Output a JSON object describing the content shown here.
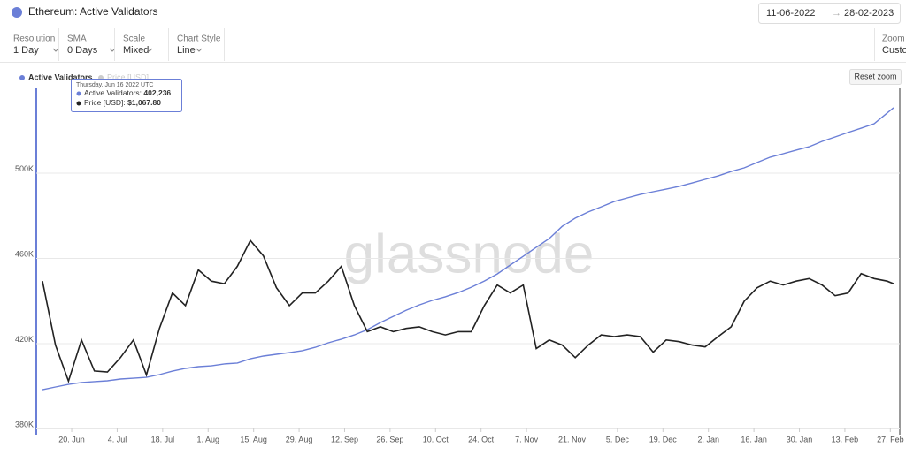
{
  "header": {
    "title": "Ethereum: Active Validators",
    "date_from": "11-06-2022",
    "arrow": "→",
    "date_to": "28-02-2023"
  },
  "toolbar": [
    {
      "label": "Resolution",
      "value": "1 Day"
    },
    {
      "label": "SMA",
      "value": "0 Days"
    },
    {
      "label": "Scale",
      "value": "Mixed"
    },
    {
      "label": "Chart Style",
      "value": "Line"
    },
    {
      "label": "Zoom",
      "value": "Custom"
    }
  ],
  "reset_zoom": "Reset zoom",
  "watermark": "glassnode",
  "tooltip": {
    "date": "Thursday, Jun 16 2022 UTC",
    "items": [
      {
        "label": "Active Validators:",
        "value": "402,236"
      },
      {
        "label": "Price [USD]:",
        "value": "$1,067.80"
      }
    ]
  },
  "chart_data": {
    "type": "line",
    "x": [
      "2022-06-11",
      "2022-06-15",
      "2022-06-19",
      "2022-06-23",
      "2022-06-27",
      "2022-07-01",
      "2022-07-05",
      "2022-07-09",
      "2022-07-13",
      "2022-07-17",
      "2022-07-21",
      "2022-07-25",
      "2022-07-29",
      "2022-08-02",
      "2022-08-06",
      "2022-08-10",
      "2022-08-14",
      "2022-08-18",
      "2022-08-22",
      "2022-08-26",
      "2022-08-30",
      "2022-09-03",
      "2022-09-07",
      "2022-09-11",
      "2022-09-15",
      "2022-09-19",
      "2022-09-23",
      "2022-09-27",
      "2022-10-01",
      "2022-10-05",
      "2022-10-09",
      "2022-10-13",
      "2022-10-17",
      "2022-10-21",
      "2022-10-25",
      "2022-10-29",
      "2022-11-02",
      "2022-11-06",
      "2022-11-10",
      "2022-11-14",
      "2022-11-18",
      "2022-11-22",
      "2022-11-26",
      "2022-11-30",
      "2022-12-04",
      "2022-12-08",
      "2022-12-12",
      "2022-12-16",
      "2022-12-20",
      "2022-12-24",
      "2022-12-28",
      "2023-01-01",
      "2023-01-05",
      "2023-01-09",
      "2023-01-13",
      "2023-01-17",
      "2023-01-21",
      "2023-01-25",
      "2023-01-29",
      "2023-02-02",
      "2023-02-06",
      "2023-02-10",
      "2023-02-14",
      "2023-02-18",
      "2023-02-22",
      "2023-02-26",
      "2023-02-28"
    ],
    "series": [
      {
        "name": "Active Validators",
        "color": "#6b7fd7",
        "values": [
          398200,
          399500,
          400700,
          401600,
          402000,
          402400,
          403200,
          403600,
          404000,
          405300,
          406900,
          408200,
          409000,
          409400,
          410300,
          410700,
          412700,
          414000,
          414800,
          415600,
          416500,
          418100,
          420200,
          421900,
          423900,
          426400,
          429700,
          432600,
          435500,
          438000,
          440100,
          441800,
          443800,
          446300,
          449200,
          452500,
          456700,
          460800,
          465000,
          469100,
          474900,
          478700,
          481600,
          484000,
          486500,
          488200,
          489800,
          491100,
          492300,
          493600,
          495200,
          496900,
          498500,
          500600,
          502300,
          504800,
          507300,
          508900,
          510600,
          512200,
          514700,
          516800,
          518900,
          520900,
          523000,
          528000,
          530500
        ]
      },
      {
        "name": "Price [USD]",
        "color": "#222222",
        "axis": "y2",
        "values": [
          1630,
          1200,
          1010,
          1230,
          1060,
          1055,
          1130,
          1230,
          1040,
          1300,
          1540,
          1450,
          1720,
          1630,
          1610,
          1750,
          1980,
          1840,
          1580,
          1450,
          1540,
          1540,
          1630,
          1750,
          1450,
          1280,
          1310,
          1280,
          1300,
          1310,
          1280,
          1260,
          1280,
          1280,
          1450,
          1600,
          1540,
          1600,
          1180,
          1230,
          1200,
          1130,
          1200,
          1260,
          1250,
          1260,
          1250,
          1160,
          1230,
          1220,
          1200,
          1190,
          1250,
          1310,
          1480,
          1580,
          1630,
          1600,
          1630,
          1650,
          1600,
          1520,
          1540,
          1690,
          1650,
          1630,
          1610
        ]
      }
    ],
    "xlim": [
      "2022-06-11",
      "2023-02-28"
    ],
    "xticks": [
      {
        "value": "2022-06-20",
        "label": "20. Jun"
      },
      {
        "value": "2022-07-04",
        "label": "4. Jul"
      },
      {
        "value": "2022-07-18",
        "label": "18. Jul"
      },
      {
        "value": "2022-08-01",
        "label": "1. Aug"
      },
      {
        "value": "2022-08-15",
        "label": "15. Aug"
      },
      {
        "value": "2022-08-29",
        "label": "29. Aug"
      },
      {
        "value": "2022-09-12",
        "label": "12. Sep"
      },
      {
        "value": "2022-09-26",
        "label": "26. Sep"
      },
      {
        "value": "2022-10-10",
        "label": "10. Oct"
      },
      {
        "value": "2022-10-24",
        "label": "24. Oct"
      },
      {
        "value": "2022-11-07",
        "label": "7. Nov"
      },
      {
        "value": "2022-11-21",
        "label": "21. Nov"
      },
      {
        "value": "2022-12-05",
        "label": "5. Dec"
      },
      {
        "value": "2022-12-19",
        "label": "19. Dec"
      },
      {
        "value": "2023-01-02",
        "label": "2. Jan"
      },
      {
        "value": "2023-01-16",
        "label": "16. Jan"
      },
      {
        "value": "2023-01-30",
        "label": "30. Jan"
      },
      {
        "value": "2023-02-13",
        "label": "13. Feb"
      },
      {
        "value": "2023-02-27",
        "label": "27. Feb"
      }
    ],
    "ylim": [
      380000,
      540000
    ],
    "yticks": [
      {
        "value": 380000,
        "label": "380K"
      },
      {
        "value": 420000,
        "label": "420K"
      },
      {
        "value": 460000,
        "label": "460K"
      },
      {
        "value": 500000,
        "label": "500K"
      }
    ],
    "y2lim": [
      805,
      4120
    ],
    "y2_log_scale": true,
    "grid": true
  }
}
